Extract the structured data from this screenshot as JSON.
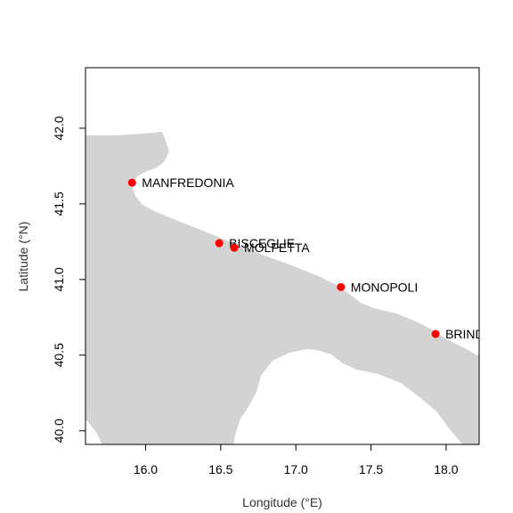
{
  "chart_data": {
    "type": "scatter",
    "title": "",
    "xlabel": "Longitude (°E)",
    "ylabel": "Latitude (°N)",
    "xlim": [
      15.6,
      18.22
    ],
    "ylim": [
      39.91,
      42.4
    ],
    "xticks": [
      16.0,
      16.5,
      17.0,
      17.5,
      18.0
    ],
    "yticks": [
      40.0,
      40.5,
      41.0,
      41.5,
      42.0
    ],
    "xtick_labels": [
      "16.0",
      "16.5",
      "17.0",
      "17.5",
      "18.0"
    ],
    "ytick_labels": [
      "40.0",
      "40.5",
      "41.0",
      "41.5",
      "42.0"
    ],
    "grid": false,
    "land_color": "#d3d3d3",
    "point_color": "#ff0000",
    "points": [
      {
        "label": "MANFREDONIA",
        "lon": 15.91,
        "lat": 41.64
      },
      {
        "label": "BISCEGLIE",
        "lon": 16.49,
        "lat": 41.24
      },
      {
        "label": "MOLFETTA",
        "lon": 16.59,
        "lat": 41.21
      },
      {
        "label": "MONOPOLI",
        "lon": 17.3,
        "lat": 40.95
      },
      {
        "label": "BRINDISI",
        "lon": 17.93,
        "lat": 40.64
      }
    ]
  }
}
